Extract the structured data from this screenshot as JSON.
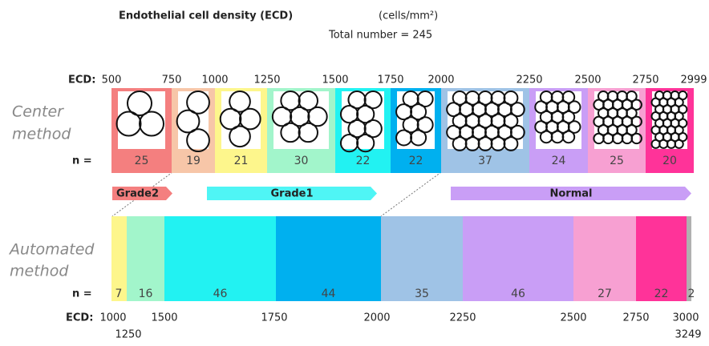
{
  "title": "Endothelial cell density (ECD)",
  "unit": "(cells/mm²)",
  "subtitle": "Total number = 245",
  "center": {
    "label": [
      "Center",
      "method"
    ],
    "ecd_label": "ECD:",
    "n_label": "n =",
    "ticks": [
      500,
      750,
      1000,
      1250,
      1500,
      1750,
      2000,
      2250,
      2500,
      2750,
      2999
    ],
    "bins": [
      {
        "n": 25,
        "color": "#f47f7f"
      },
      {
        "n": 19,
        "color": "#f7c6a8"
      },
      {
        "n": 21,
        "color": "#fdf68c"
      },
      {
        "n": 30,
        "color": "#a2f5cb"
      },
      {
        "n": 22,
        "color": "#22f2f2"
      },
      {
        "n": 22,
        "color": "#00b0ef"
      },
      {
        "n": 37,
        "color": "#9fc3e6"
      },
      {
        "n": 24,
        "color": "#c99ef6"
      },
      {
        "n": 25,
        "color": "#f7a0d2"
      },
      {
        "n": 20,
        "color": "#ff3399"
      }
    ]
  },
  "grades": [
    {
      "label": "Grade2",
      "color": "#f47f7f"
    },
    {
      "label": "Grade1",
      "color": "#4ff5f5"
    },
    {
      "label": "Normal",
      "color": "#c99ef6"
    }
  ],
  "automated": {
    "label": [
      "Automated",
      "method"
    ],
    "ecd_label": "ECD:",
    "n_label": "n =",
    "ticks": [
      1000,
      1250,
      1500,
      1750,
      2000,
      2250,
      2500,
      2750,
      3000,
      3249
    ],
    "bins": [
      {
        "n": 7,
        "color": "#fdf68c"
      },
      {
        "n": 16,
        "color": "#a2f5cb"
      },
      {
        "n": 46,
        "color": "#22f2f2"
      },
      {
        "n": 44,
        "color": "#00b0ef"
      },
      {
        "n": 35,
        "color": "#9fc3e6"
      },
      {
        "n": 46,
        "color": "#c99ef6"
      },
      {
        "n": 27,
        "color": "#f7a0d2"
      },
      {
        "n": 22,
        "color": "#ff3399"
      },
      {
        "n": 2,
        "color": "#b0b0b0"
      }
    ]
  }
}
